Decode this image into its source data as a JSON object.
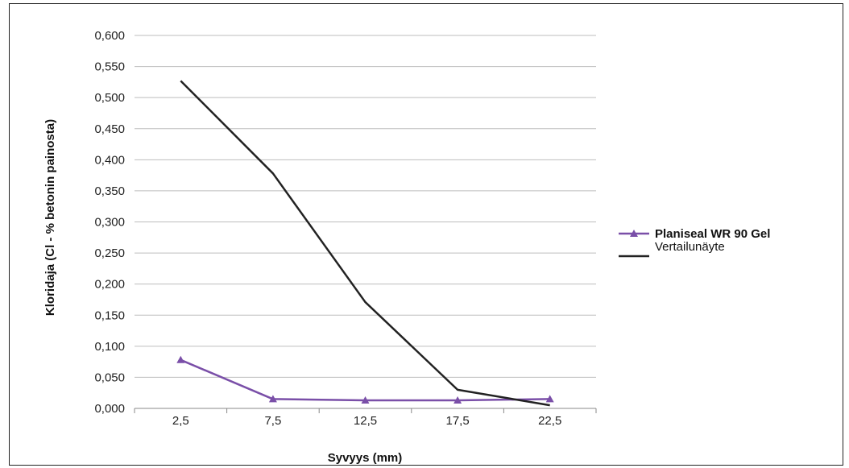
{
  "chart_data": {
    "type": "line",
    "title": "",
    "xlabel": "Syvyys (mm)",
    "ylabel": "Kloridaja (Cl - % betonin painosta)",
    "categories": [
      "2,5",
      "7,5",
      "12,5",
      "17,5",
      "22,5"
    ],
    "y_ticks": [
      "0,000",
      "0,050",
      "0,100",
      "0,150",
      "0,200",
      "0,250",
      "0,300",
      "0,350",
      "0,400",
      "0,450",
      "0,500",
      "0,550",
      "0,600"
    ],
    "ylim": [
      0,
      0.6
    ],
    "grid": true,
    "legend_position": "right",
    "series": [
      {
        "name": "Planiseal WR 90 Gel",
        "values": [
          0.078,
          0.015,
          0.013,
          0.013,
          0.015
        ],
        "color": "#7a4fa8",
        "marker": "triangle"
      },
      {
        "name": "Vertailunäyte",
        "values": [
          0.527,
          0.378,
          0.171,
          0.03,
          0.005
        ],
        "color": "#222222",
        "marker": "none"
      }
    ]
  }
}
